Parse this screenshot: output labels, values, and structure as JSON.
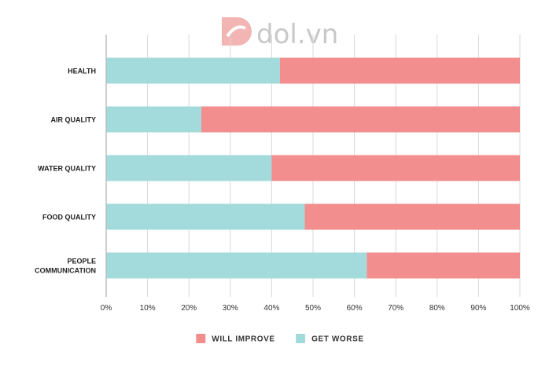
{
  "watermark": {
    "text": "dol.vn"
  },
  "chart_data": {
    "type": "bar",
    "orientation": "horizontal",
    "stacked": true,
    "categories": [
      [
        "HEALTH"
      ],
      [
        "AIR QUALITY"
      ],
      [
        "WATER QUALITY"
      ],
      [
        "FOOD QUALITY"
      ],
      [
        "PEOPLE",
        "COMMUNICATION"
      ]
    ],
    "series": [
      {
        "name": "GET WORSE",
        "color": "#a3dbdc",
        "values": [
          42,
          23,
          40,
          48,
          63
        ]
      },
      {
        "name": "WILL IMPROVE",
        "color": "#f28e8e",
        "values": [
          58,
          77,
          60,
          52,
          37
        ]
      }
    ],
    "xlim": [
      0,
      100
    ],
    "xticks": [
      "0%",
      "10%",
      "20%",
      "30%",
      "40%",
      "50%",
      "60%",
      "70%",
      "80%",
      "90%",
      "100%"
    ],
    "grid": true,
    "legend": {
      "position": "bottom-center",
      "items": [
        {
          "label": "WILL IMPROVE",
          "color": "#f28e8e"
        },
        {
          "label": "GET WORSE",
          "color": "#a3dbdc"
        }
      ]
    }
  }
}
